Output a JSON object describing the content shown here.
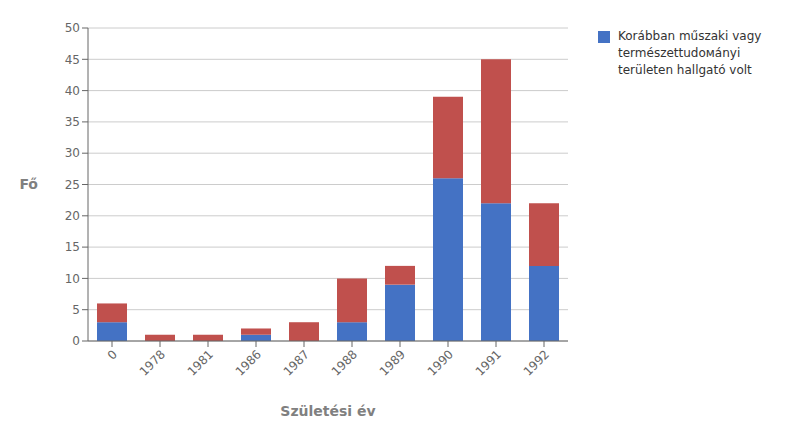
{
  "chart_data": {
    "type": "bar",
    "stacked": true,
    "categories": [
      "0",
      "1978",
      "1981",
      "1986",
      "1987",
      "1988",
      "1989",
      "1990",
      "1991",
      "1992"
    ],
    "series": [
      {
        "name": "Korábban műszaki vagy\ntermészettudомányi\nterületеn hallgató volt",
        "color": "#4472C4",
        "values": [
          3,
          0,
          0,
          1,
          0,
          3,
          9,
          26,
          22,
          12
        ]
      },
      {
        "color": "#C0504D",
        "values": [
          3,
          1,
          1,
          1,
          3,
          7,
          3,
          13,
          23,
          10
        ]
      }
    ],
    "xlabel": "Születési év",
    "ylabel": "Fő",
    "ylim": [
      0,
      50
    ],
    "yticks": [
      0,
      5,
      10,
      15,
      20,
      25,
      30,
      35,
      40,
      45,
      50
    ],
    "grid": true,
    "legend": "right"
  }
}
